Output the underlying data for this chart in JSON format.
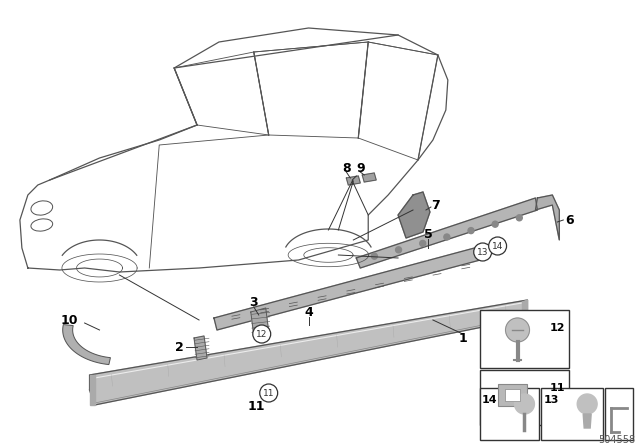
{
  "bg_color": "#ffffff",
  "fig_width": 6.4,
  "fig_height": 4.48,
  "part_number": "504558",
  "line_color": "#555555",
  "dark_color": "#333333",
  "gray_fill": "#cccccc",
  "gray_mid": "#aaaaaa",
  "gray_dark": "#888888"
}
